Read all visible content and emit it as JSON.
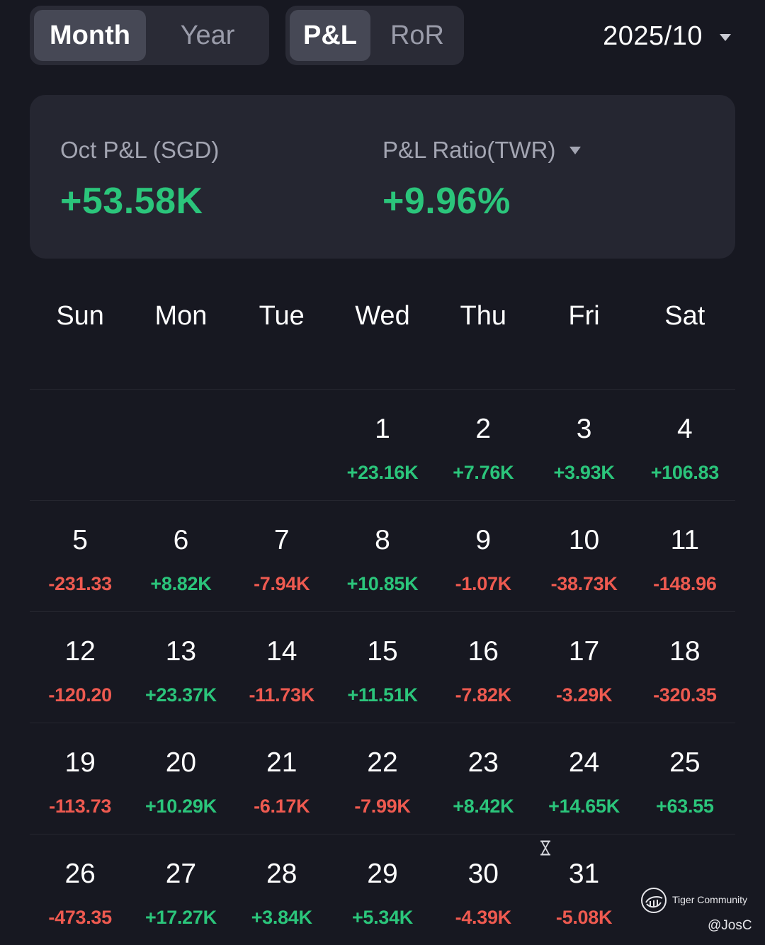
{
  "header": {
    "period_tabs": [
      {
        "label": "Month",
        "active": true
      },
      {
        "label": "Year",
        "active": false
      }
    ],
    "metric_tabs": [
      {
        "label": "P&L",
        "active": true
      },
      {
        "label": "RoR",
        "active": false
      }
    ],
    "date_selector": {
      "value": "2025/10",
      "icon": "caret-down-icon"
    }
  },
  "summary": {
    "pnl_label": "Oct P&L (SGD)",
    "pnl_value": "+53.58K",
    "ratio_label": "P&L Ratio(TWR)",
    "ratio_value": "+9.96%",
    "ratio_dropdown_icon": "caret-down-icon"
  },
  "colors": {
    "background": "#171821",
    "card": "#252631",
    "positive": "#2bc57b",
    "negative": "#ee5a50",
    "muted_text": "#a3a5b2"
  },
  "calendar": {
    "weekdays": [
      "Sun",
      "Mon",
      "Tue",
      "Wed",
      "Thu",
      "Fri",
      "Sat"
    ],
    "weeks": [
      [
        null,
        null,
        null,
        {
          "day": "1",
          "pnl": "+23.16K"
        },
        {
          "day": "2",
          "pnl": "+7.76K"
        },
        {
          "day": "3",
          "pnl": "+3.93K"
        },
        {
          "day": "4",
          "pnl": "+106.83"
        }
      ],
      [
        {
          "day": "5",
          "pnl": "-231.33"
        },
        {
          "day": "6",
          "pnl": "+8.82K"
        },
        {
          "day": "7",
          "pnl": "-7.94K"
        },
        {
          "day": "8",
          "pnl": "+10.85K"
        },
        {
          "day": "9",
          "pnl": "-1.07K"
        },
        {
          "day": "10",
          "pnl": "-38.73K"
        },
        {
          "day": "11",
          "pnl": "-148.96"
        }
      ],
      [
        {
          "day": "12",
          "pnl": "-120.20"
        },
        {
          "day": "13",
          "pnl": "+23.37K"
        },
        {
          "day": "14",
          "pnl": "-11.73K"
        },
        {
          "day": "15",
          "pnl": "+11.51K"
        },
        {
          "day": "16",
          "pnl": "-7.82K"
        },
        {
          "day": "17",
          "pnl": "-3.29K"
        },
        {
          "day": "18",
          "pnl": "-320.35"
        }
      ],
      [
        {
          "day": "19",
          "pnl": "-113.73"
        },
        {
          "day": "20",
          "pnl": "+10.29K"
        },
        {
          "day": "21",
          "pnl": "-6.17K"
        },
        {
          "day": "22",
          "pnl": "-7.99K"
        },
        {
          "day": "23",
          "pnl": "+8.42K"
        },
        {
          "day": "24",
          "pnl": "+14.65K"
        },
        {
          "day": "25",
          "pnl": "+63.55"
        }
      ],
      [
        {
          "day": "26",
          "pnl": "-473.35"
        },
        {
          "day": "27",
          "pnl": "+17.27K"
        },
        {
          "day": "28",
          "pnl": "+3.84K"
        },
        {
          "day": "29",
          "pnl": "+5.34K"
        },
        {
          "day": "30",
          "pnl": "-4.39K"
        },
        {
          "day": "31",
          "pnl": "-5.08K",
          "pending": true,
          "pending_icon": "hourglass-icon"
        },
        null
      ]
    ]
  },
  "watermark": {
    "brand": "Tiger Community",
    "handle": "@JosC",
    "icon": "tiger-community-logo-icon"
  }
}
